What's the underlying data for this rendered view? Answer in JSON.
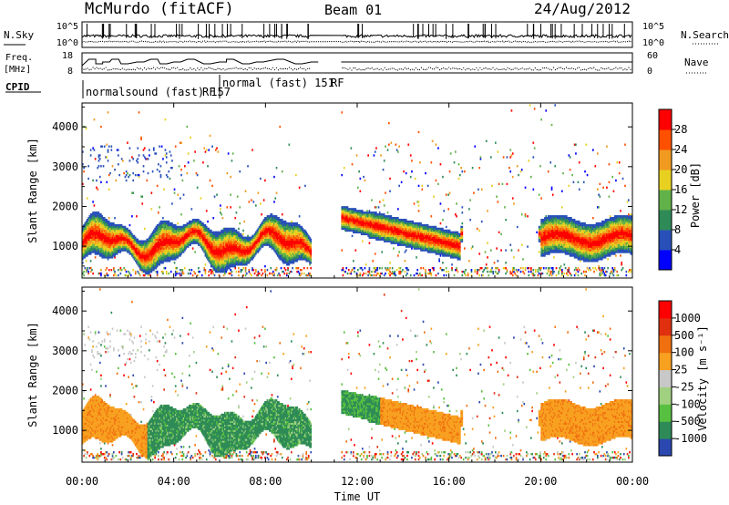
{
  "header": {
    "title": "McMurdo (fitACF)",
    "beam": "Beam 01",
    "date": "24/Aug/2012"
  },
  "top_panels": {
    "nsky_label": "N.Sky",
    "nsearch_label": "N.Search",
    "freq_label": "Freq.",
    "freq_unit": "[MHz]",
    "nave_label": "Nave",
    "cpid_label": "CPID",
    "noise_left_ticks": [
      "10^5",
      "10^0"
    ],
    "noise_right_ticks": [
      "10^5",
      "10^0"
    ],
    "freq_left_ticks": [
      "18",
      "8"
    ],
    "nave_right_ticks": [
      "60",
      "0"
    ],
    "cpid_labels": [
      {
        "text": "normalsound (fast) 157",
        "start_hour": 0.0
      },
      {
        "text": "RF",
        "start_hour": 6.0
      },
      {
        "text": "normal (fast) 151",
        "start_hour": 6.0
      },
      {
        "text": "RF",
        "start_hour": 11.3
      }
    ]
  },
  "chart_data": [
    {
      "type": "heatmap",
      "name": "power",
      "ylabel": "Slant Range [km]",
      "xlim": [
        0,
        24
      ],
      "ylim": [
        200,
        4600
      ],
      "ytick_labels": [
        "1000",
        "2000",
        "3000",
        "4000"
      ],
      "ytick_values": [
        1000,
        2000,
        3000,
        4000
      ],
      "data_gap_hours": [
        10.0,
        11.3
      ],
      "colorbar": {
        "label": "Power [dB]",
        "ticks": [
          "4",
          "8",
          "12",
          "16",
          "20",
          "24",
          "28"
        ],
        "colors": [
          "#0000ff",
          "#2850b8",
          "#2e8b57",
          "#62b24a",
          "#e8d020",
          "#f09a20",
          "#ff5000",
          "#ff0000"
        ]
      }
    },
    {
      "type": "heatmap",
      "name": "velocity",
      "ylabel": "Slant Range [km]",
      "xlim": [
        0,
        24
      ],
      "ylim": [
        200,
        4600
      ],
      "ytick_labels": [
        "1000",
        "2000",
        "3000",
        "4000"
      ],
      "ytick_values": [
        1000,
        2000,
        3000,
        4000
      ],
      "xtick_labels": [
        "00:00",
        "04:00",
        "08:00",
        "12:00",
        "16:00",
        "20:00",
        "00:00"
      ],
      "xtick_values": [
        0,
        4,
        8,
        12,
        16,
        20,
        24
      ],
      "xlabel": "Time UT",
      "data_gap_hours": [
        10.0,
        11.3
      ],
      "colorbar": {
        "label": "Velocity [m s⁻¹]",
        "ticks": [
          "1000",
          "500",
          "100",
          "25",
          "-25",
          "-100",
          "-500",
          "-1000"
        ],
        "colors": [
          "#2a48b0",
          "#2e8b57",
          "#58c040",
          "#a0d080",
          "#c8c8c8",
          "#f8a020",
          "#f07010",
          "#e03010",
          "#ff0000"
        ]
      }
    }
  ]
}
